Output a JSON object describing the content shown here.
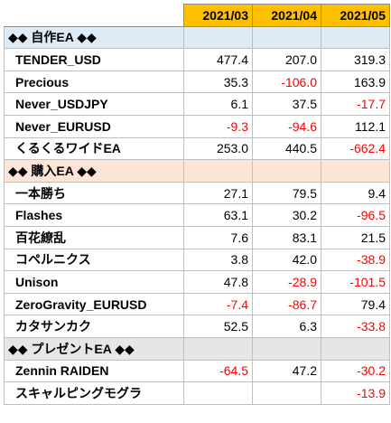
{
  "columns": [
    "2021/03",
    "2021/04",
    "2021/05"
  ],
  "sections": [
    {
      "key": "own",
      "title": "◆◆ 自作EA ◆◆",
      "rows": [
        {
          "name": "TENDER_USD",
          "values": [
            "477.4",
            "207.0",
            "319.3"
          ]
        },
        {
          "name": "Precious",
          "values": [
            "35.3",
            "-106.0",
            "163.9"
          ]
        },
        {
          "name": "Never_USDJPY",
          "values": [
            "6.1",
            "37.5",
            "-17.7"
          ]
        },
        {
          "name": "Never_EURUSD",
          "values": [
            "-9.3",
            "-94.6",
            "112.1"
          ]
        },
        {
          "name": "くるくるワイドEA",
          "values": [
            "253.0",
            "440.5",
            "-662.4"
          ]
        }
      ]
    },
    {
      "key": "buy",
      "title": "◆◆ 購入EA ◆◆",
      "rows": [
        {
          "name": "一本勝ち",
          "values": [
            "27.1",
            "79.5",
            "9.4"
          ]
        },
        {
          "name": "Flashes",
          "values": [
            "63.1",
            "30.2",
            "-96.5"
          ]
        },
        {
          "name": "百花繚乱",
          "values": [
            "7.6",
            "83.1",
            "21.5"
          ]
        },
        {
          "name": "コペルニクス",
          "values": [
            "3.8",
            "42.0",
            "-38.9"
          ]
        },
        {
          "name": "Unison",
          "values": [
            "47.8",
            "-28.9",
            "-101.5"
          ]
        },
        {
          "name": "ZeroGravity_EURUSD",
          "values": [
            "-7.4",
            "-86.7",
            "79.4"
          ]
        },
        {
          "name": "カタサンカク",
          "values": [
            "52.5",
            "6.3",
            "-33.8"
          ]
        }
      ]
    },
    {
      "key": "gift",
      "title": "◆◆ プレゼントEA ◆◆",
      "rows": [
        {
          "name": "Zennin RAIDEN",
          "values": [
            "-64.5",
            "47.2",
            "-30.2"
          ]
        },
        {
          "name": "スキャルピングモグラ",
          "values": [
            "",
            "",
            "-13.9"
          ]
        }
      ]
    }
  ],
  "colors": {
    "header_bg": "#ffc000",
    "own_section_bg": "#ddebf7",
    "buy_section_bg": "#fce4d6",
    "gift_section_bg": "#e7e6e6",
    "negative_text": "#ff0000",
    "gridline": "#bfbfbf"
  }
}
